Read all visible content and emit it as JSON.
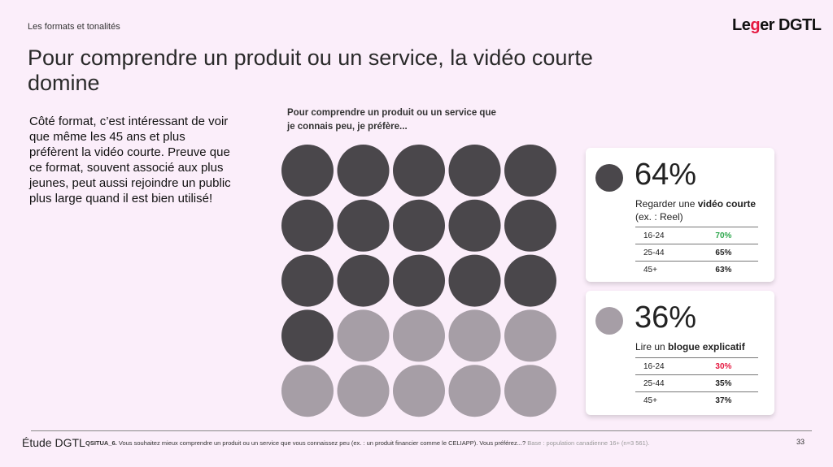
{
  "header": {
    "section": "Les formats et tonalités",
    "logo": "Leger DGTL",
    "title": "Pour comprendre un produit ou un service, la vidéo courte domine"
  },
  "body_text": "Côté format, c’est intéressant de voir que même les 45 ans et plus préfèrent la vidéo courte. Preuve que ce format, souvent associé aux plus jeunes, peut aussi rejoindre un public plus large quand il est bien utilisé!",
  "chart_data": {
    "type": "waffle",
    "title": "Pour comprendre un produit ou un service que je connais peu, je préfère...",
    "total_dots": 25,
    "series": [
      {
        "name": "Regarder une vidéo courte (ex. : Reel)",
        "value": 64,
        "dots": 16,
        "color": "#4a474b"
      },
      {
        "name": "Lire un blogue explicatif",
        "value": 36,
        "dots": 9,
        "color": "#a69ea6"
      }
    ]
  },
  "cards": [
    {
      "pct": "64%",
      "label_pre": "Regarder une ",
      "label_bold": "vidéo courte",
      "label_post": "(ex. : Reel)",
      "color": "#4a474b",
      "rows": [
        {
          "age": "16-24",
          "val": "70%",
          "color": "#2aa64a"
        },
        {
          "age": "25-44",
          "val": "65%",
          "color": "#222"
        },
        {
          "age": "45+",
          "val": "63%",
          "color": "#222"
        }
      ]
    },
    {
      "pct": "36%",
      "label_pre": "Lire un ",
      "label_bold": "blogue explicatif",
      "label_post": "",
      "color": "#a69ea6",
      "rows": [
        {
          "age": "16-24",
          "val": "30%",
          "color": "#e5173f"
        },
        {
          "age": "25-44",
          "val": "35%",
          "color": "#222"
        },
        {
          "age": "45+",
          "val": "37%",
          "color": "#222"
        }
      ]
    }
  ],
  "footer": {
    "brand": "Étude DGTL",
    "question_id": "QSITUA_6.",
    "question": " Vous souhaitez mieux comprendre un produit ou un service que vous connaissez peu (ex. : un produit financier comme le CELIAPP). Vous préférez...?",
    "base": " Base : population canadienne 16+ (n=3 561).",
    "page": "33"
  }
}
